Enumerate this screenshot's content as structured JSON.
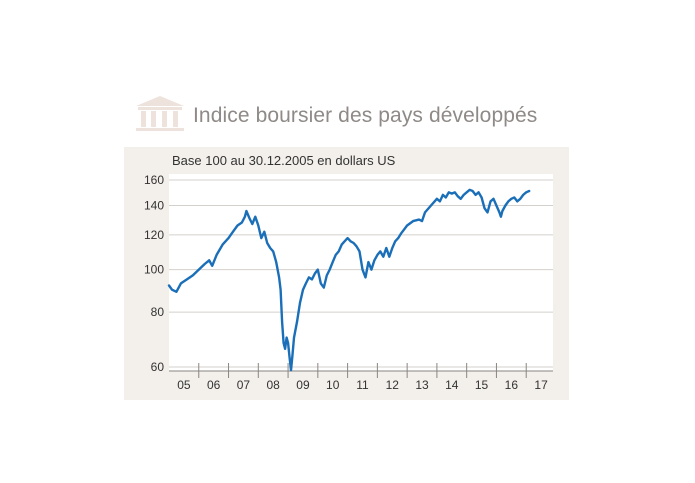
{
  "header": {
    "title": "Indice boursier des pays développés",
    "icon": "bank-icon",
    "icon_color": "#ede3dc"
  },
  "colors": {
    "series": "#1a6fb8",
    "panel_bg": "#f3efeb",
    "plot_bg": "#ffffff",
    "grid": "#d4d0cc",
    "axis": "#8a8580",
    "text": "#333333"
  },
  "chart_data": {
    "type": "line",
    "title": "Indice boursier des pays développés",
    "subtitle": "Base 100 au 30.12.2005 en dollars US",
    "xlabel": "",
    "ylabel": "",
    "y_scale": "log",
    "ylim": [
      60,
      160
    ],
    "yticks": [
      60,
      80,
      100,
      120,
      140,
      160
    ],
    "ytick_labels": [
      "60",
      "80",
      "100",
      "120",
      "140",
      "160"
    ],
    "xlim": [
      2005.0,
      2017.9
    ],
    "xtick_labels": [
      "05",
      "06",
      "07",
      "08",
      "09",
      "10",
      "11",
      "12",
      "13",
      "14",
      "15",
      "16",
      "17"
    ],
    "grid": true,
    "legend": "none",
    "series": [
      {
        "name": "Indice boursier des pays développés",
        "x": [
          2005.0,
          2005.1,
          2005.25,
          2005.4,
          2005.6,
          2005.8,
          2006.0,
          2006.2,
          2006.35,
          2006.45,
          2006.6,
          2006.8,
          2007.0,
          2007.15,
          2007.3,
          2007.45,
          2007.55,
          2007.6,
          2007.7,
          2007.8,
          2007.9,
          2008.0,
          2008.1,
          2008.2,
          2008.3,
          2008.4,
          2008.5,
          2008.6,
          2008.7,
          2008.75,
          2008.8,
          2008.85,
          2008.9,
          2008.95,
          2009.0,
          2009.05,
          2009.1,
          2009.15,
          2009.2,
          2009.3,
          2009.4,
          2009.5,
          2009.6,
          2009.7,
          2009.8,
          2009.9,
          2010.0,
          2010.1,
          2010.2,
          2010.3,
          2010.4,
          2010.5,
          2010.6,
          2010.7,
          2010.8,
          2010.9,
          2011.0,
          2011.1,
          2011.2,
          2011.3,
          2011.4,
          2011.5,
          2011.6,
          2011.7,
          2011.8,
          2011.9,
          2012.0,
          2012.1,
          2012.2,
          2012.3,
          2012.4,
          2012.5,
          2012.6,
          2012.7,
          2012.8,
          2013.0,
          2013.2,
          2013.4,
          2013.5,
          2013.6,
          2013.8,
          2014.0,
          2014.1,
          2014.2,
          2014.3,
          2014.4,
          2014.5,
          2014.6,
          2014.7,
          2014.8,
          2014.9,
          2015.0,
          2015.1,
          2015.2,
          2015.3,
          2015.4,
          2015.5,
          2015.6,
          2015.7,
          2015.8,
          2015.9,
          2016.0,
          2016.1,
          2016.15,
          2016.2,
          2016.3,
          2016.4,
          2016.5,
          2016.6,
          2016.7,
          2016.8,
          2016.9,
          2017.0,
          2017.1
        ],
        "values": [
          92,
          90,
          89,
          93,
          95,
          97,
          100,
          103,
          105,
          102,
          108,
          114,
          118,
          122,
          126,
          128,
          132,
          136,
          131,
          127,
          132,
          126,
          118,
          122,
          115,
          112,
          110,
          104,
          96,
          90,
          76,
          68,
          66,
          70,
          68,
          63,
          59,
          64,
          70,
          76,
          84,
          90,
          93,
          96,
          95,
          98,
          100,
          93,
          91,
          97,
          100,
          104,
          108,
          110,
          114,
          116,
          118,
          116,
          115,
          113,
          110,
          100,
          96,
          104,
          100,
          105,
          108,
          110,
          107,
          112,
          107,
          112,
          116,
          118,
          121,
          126,
          129,
          130,
          129,
          135,
          140,
          145,
          143,
          148,
          146,
          150,
          149,
          150,
          147,
          145,
          148,
          150,
          152,
          151,
          148,
          150,
          146,
          138,
          135,
          143,
          145,
          140,
          135,
          132,
          136,
          140,
          143,
          145,
          146,
          143,
          145,
          148,
          150,
          151
        ]
      }
    ]
  }
}
